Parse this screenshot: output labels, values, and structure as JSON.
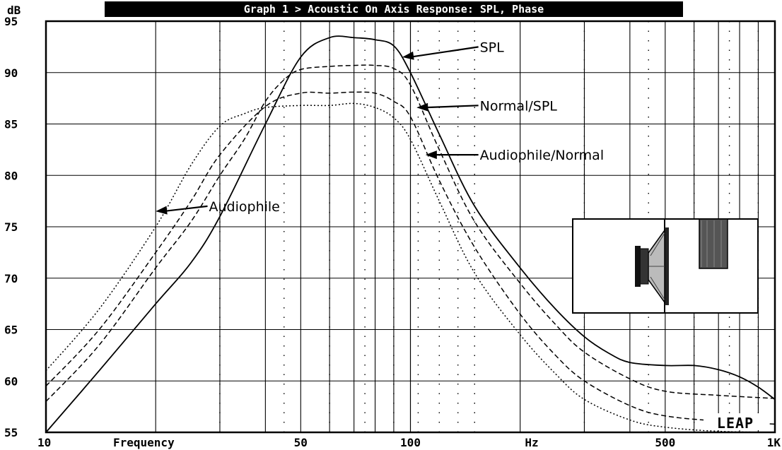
{
  "chart_data": {
    "type": "line",
    "title": "Graph 1 > Acoustic On Axis Response: SPL, Phase",
    "ylabel": "dB",
    "xlabel_left": "Frequency",
    "xlabel_right": "Hz",
    "xscale": "log",
    "xlim": [
      10,
      1000
    ],
    "ylim": [
      55,
      95
    ],
    "x_tick_labels": [
      {
        "value": 10,
        "label": "10"
      },
      {
        "value": 50,
        "label": "50"
      },
      {
        "value": 100,
        "label": "100"
      },
      {
        "value": 500,
        "label": "500"
      },
      {
        "value": 1000,
        "label": "1K"
      }
    ],
    "y_ticks": [
      55,
      60,
      65,
      70,
      75,
      80,
      85,
      90,
      95
    ],
    "grid": true,
    "legend": "none",
    "series": [
      {
        "name": "SPL",
        "style": "solid",
        "points": [
          [
            10,
            55
          ],
          [
            14,
            61
          ],
          [
            20,
            67.5
          ],
          [
            25,
            71.5
          ],
          [
            30,
            76
          ],
          [
            40,
            85
          ],
          [
            50,
            91.5
          ],
          [
            60,
            93.4
          ],
          [
            70,
            93.4
          ],
          [
            80,
            93.2
          ],
          [
            90,
            92.6
          ],
          [
            100,
            90
          ],
          [
            120,
            84
          ],
          [
            150,
            77
          ],
          [
            200,
            71
          ],
          [
            250,
            67
          ],
          [
            300,
            64.3
          ],
          [
            350,
            62.7
          ],
          [
            400,
            61.8
          ],
          [
            500,
            61.5
          ],
          [
            600,
            61.5
          ],
          [
            700,
            61.1
          ],
          [
            800,
            60.4
          ],
          [
            900,
            59.4
          ],
          [
            1000,
            58.2
          ]
        ]
      },
      {
        "name": "Normal/SPL",
        "style": "dashed",
        "points": [
          [
            10,
            58
          ],
          [
            14,
            63.5
          ],
          [
            20,
            71
          ],
          [
            25,
            75.5
          ],
          [
            30,
            80
          ],
          [
            35,
            83.5
          ],
          [
            40,
            87.2
          ],
          [
            45,
            89.3
          ],
          [
            50,
            90.3
          ],
          [
            60,
            90.6
          ],
          [
            70,
            90.7
          ],
          [
            80,
            90.7
          ],
          [
            90,
            90.4
          ],
          [
            100,
            88.8
          ],
          [
            120,
            82.5
          ],
          [
            150,
            75.5
          ],
          [
            200,
            69.5
          ],
          [
            250,
            65.5
          ],
          [
            300,
            62.8
          ],
          [
            400,
            60.2
          ],
          [
            500,
            59
          ],
          [
            700,
            58.6
          ],
          [
            1000,
            58.3
          ]
        ]
      },
      {
        "name": "Audiophile/Normal",
        "style": "dashed",
        "points": [
          [
            10,
            59.5
          ],
          [
            14,
            65
          ],
          [
            20,
            72.5
          ],
          [
            25,
            77.5
          ],
          [
            30,
            82
          ],
          [
            40,
            86.7
          ],
          [
            50,
            88
          ],
          [
            60,
            88
          ],
          [
            70,
            88.1
          ],
          [
            80,
            88
          ],
          [
            90,
            87.2
          ],
          [
            100,
            85.7
          ],
          [
            120,
            79.5
          ],
          [
            150,
            73
          ],
          [
            200,
            66.5
          ],
          [
            250,
            62.5
          ],
          [
            300,
            60
          ],
          [
            400,
            57.6
          ],
          [
            500,
            56.6
          ],
          [
            700,
            56.1
          ],
          [
            1000,
            55.8
          ]
        ]
      },
      {
        "name": "Audiophile",
        "style": "dotted",
        "points": [
          [
            10,
            61
          ],
          [
            14,
            67
          ],
          [
            20,
            75
          ],
          [
            25,
            81
          ],
          [
            30,
            84.8
          ],
          [
            35,
            86
          ],
          [
            40,
            86.6
          ],
          [
            50,
            86.8
          ],
          [
            60,
            86.8
          ],
          [
            70,
            87
          ],
          [
            80,
            86.6
          ],
          [
            90,
            85.6
          ],
          [
            100,
            83.5
          ],
          [
            120,
            77.5
          ],
          [
            150,
            70.5
          ],
          [
            200,
            64.5
          ],
          [
            250,
            60.7
          ],
          [
            300,
            58.2
          ],
          [
            400,
            56.2
          ],
          [
            500,
            55.5
          ],
          [
            700,
            55.1
          ],
          [
            1000,
            55
          ]
        ]
      }
    ],
    "annotations": [
      {
        "label": "SPL",
        "target": [
          95,
          91.5
        ],
        "text_at": [
          155,
          92.5
        ]
      },
      {
        "label": "Normal/SPL",
        "target": [
          104,
          86.6
        ],
        "text_at": [
          155,
          86.8
        ]
      },
      {
        "label": "Audiophile/Normal",
        "target": [
          110,
          82
        ],
        "text_at": [
          155,
          82
        ]
      },
      {
        "label": "Audiophile",
        "target": [
          20,
          76.5
        ],
        "text_at": [
          28,
          77
        ]
      }
    ],
    "watermark": "LEAP"
  }
}
